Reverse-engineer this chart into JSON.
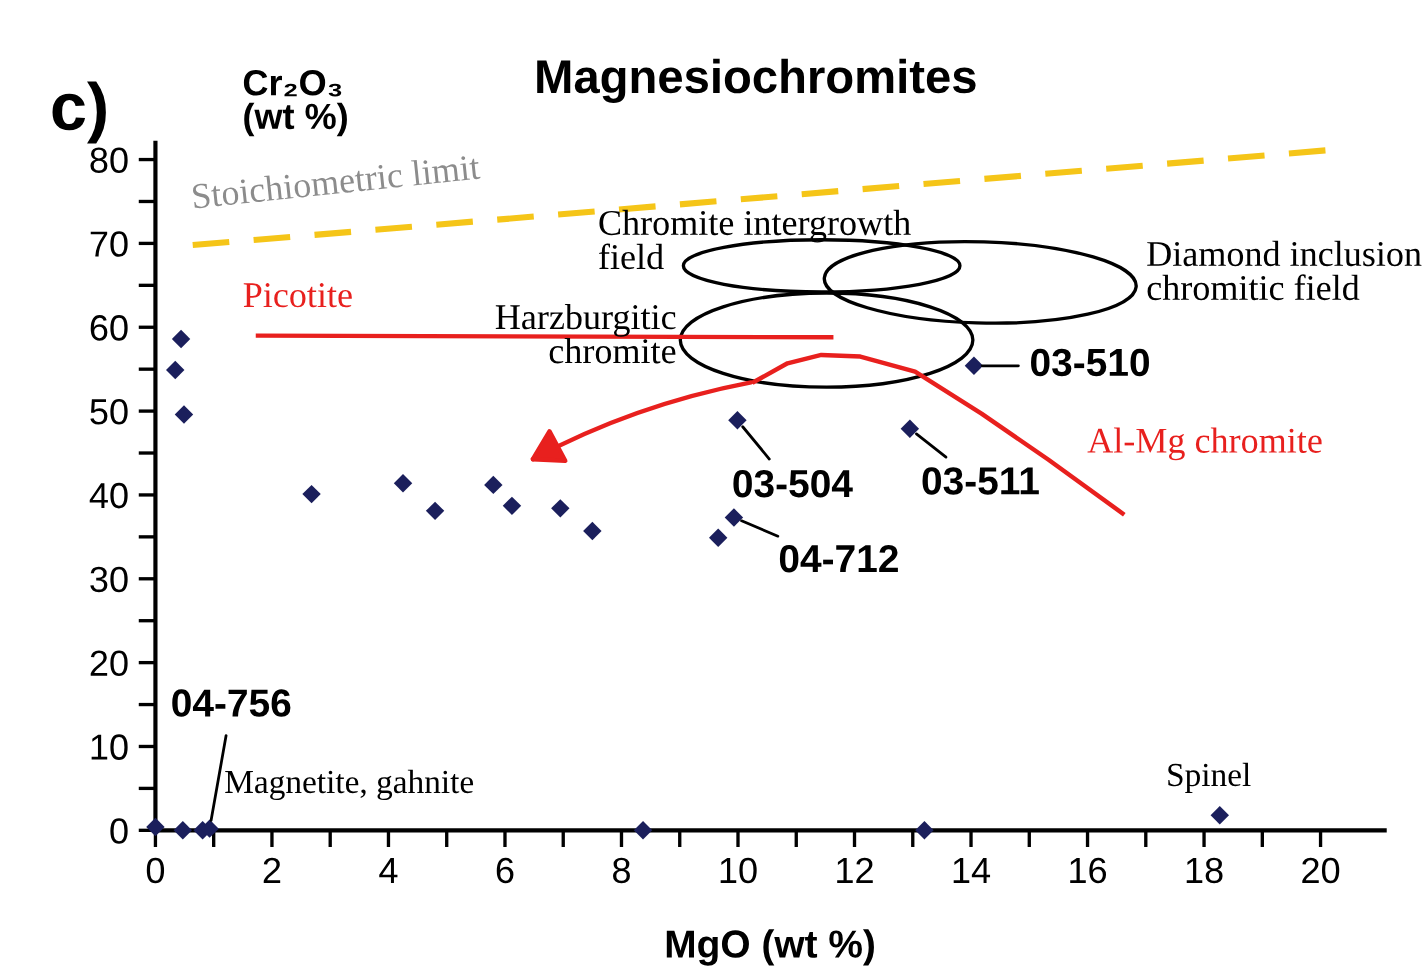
{
  "chart_data": {
    "type": "scatter",
    "title": "Magnesiochromites",
    "xlabel": "MgO (wt %)",
    "ylabel": "Cr₂O₃\n(wt %)",
    "xlim": [
      0,
      21.1
    ],
    "ylim": [
      0,
      82
    ],
    "xticks": [
      0,
      {
        "value": 1,
        "label": null
      },
      2,
      {
        "value": 3,
        "label": null
      },
      4,
      {
        "value": 5,
        "label": null
      },
      6,
      {
        "value": 7,
        "label": null
      },
      8,
      {
        "value": 9,
        "label": null
      },
      10,
      {
        "value": 11,
        "label": null
      },
      12,
      {
        "value": 13,
        "label": null
      },
      14,
      {
        "value": 15,
        "label": null
      },
      16,
      {
        "value": 17,
        "label": null
      },
      18,
      {
        "value": 19,
        "label": null
      },
      20
    ],
    "yticks": [
      0,
      {
        "value": 5,
        "label": null
      },
      10,
      {
        "value": 15,
        "label": null
      },
      20,
      {
        "value": 25,
        "label": null
      },
      30,
      {
        "value": 35,
        "label": null
      },
      40,
      {
        "value": 45,
        "label": null
      },
      50,
      {
        "value": 55,
        "label": null
      },
      60,
      {
        "value": 65,
        "label": null
      },
      70,
      {
        "value": 75,
        "label": null
      },
      80
    ],
    "marker": "diamond",
    "series": [
      {
        "color": "#1b1f5c",
        "x": [
          0.44,
          0.34,
          0.49,
          2.68,
          4.25,
          4.8,
          5.8,
          6.12,
          6.95,
          7.5,
          9.66,
          9.93,
          9.99,
          12.95,
          14.05,
          0,
          0.47,
          0.81,
          0.93,
          8.37,
          13.2,
          18.27
        ],
        "values": [
          58.6,
          54.9,
          49.6,
          40.1,
          41.4,
          38.1,
          41.2,
          38.7,
          38.4,
          35.7,
          34.9,
          37.3,
          48.9,
          47.9,
          55.4,
          0.4,
          0,
          0,
          0.2,
          0,
          0,
          1.8
        ]
      },
      {
        "type": "line",
        "color": "#f5c518",
        "line_style": "dashed",
        "marker": "none",
        "x": [
          0.64,
          20.1
        ],
        "values": [
          69.8,
          81.1
        ]
      },
      {
        "type": "line",
        "color": "#e8201e",
        "line_style": "solid",
        "marker": "none",
        "x": [
          1.76,
          11.6
        ],
        "values": [
          59.0,
          58.8
        ]
      },
      {
        "type": "line",
        "color": "#e8201e",
        "line_style": "solid",
        "marker": "none",
        "x": [
          10.28,
          10.85,
          11.43,
          12.1,
          13.04,
          14.18,
          15.33,
          16.6
        ],
        "values": [
          53.5,
          55.7,
          56.7,
          56.5,
          54.7,
          49.7,
          44.2,
          37.8
        ]
      }
    ],
    "annotations": [
      "c)",
      "Stoichiometric limit",
      "Picotite",
      "Chromite intergrowth\nfield",
      "Harzburgitic\nchromite",
      "Diamond inclusion\nchromitic field",
      {
        "text": "03-510",
        "x": 14.05,
        "y": 55.4
      },
      {
        "text": "03-504",
        "x": 9.99,
        "y": 48.9
      },
      {
        "text": "03-511",
        "x": 12.95,
        "y": 47.9
      },
      {
        "text": "04-712",
        "x": 9.93,
        "y": 37.3
      },
      {
        "text": "04-756",
        "x": 0.93,
        "y": 0.2
      },
      "Magnetite, gahnite",
      {
        "text": "Spinel",
        "x": 18.27,
        "y": 1.8
      },
      "Al-Mg chromite"
    ]
  }
}
